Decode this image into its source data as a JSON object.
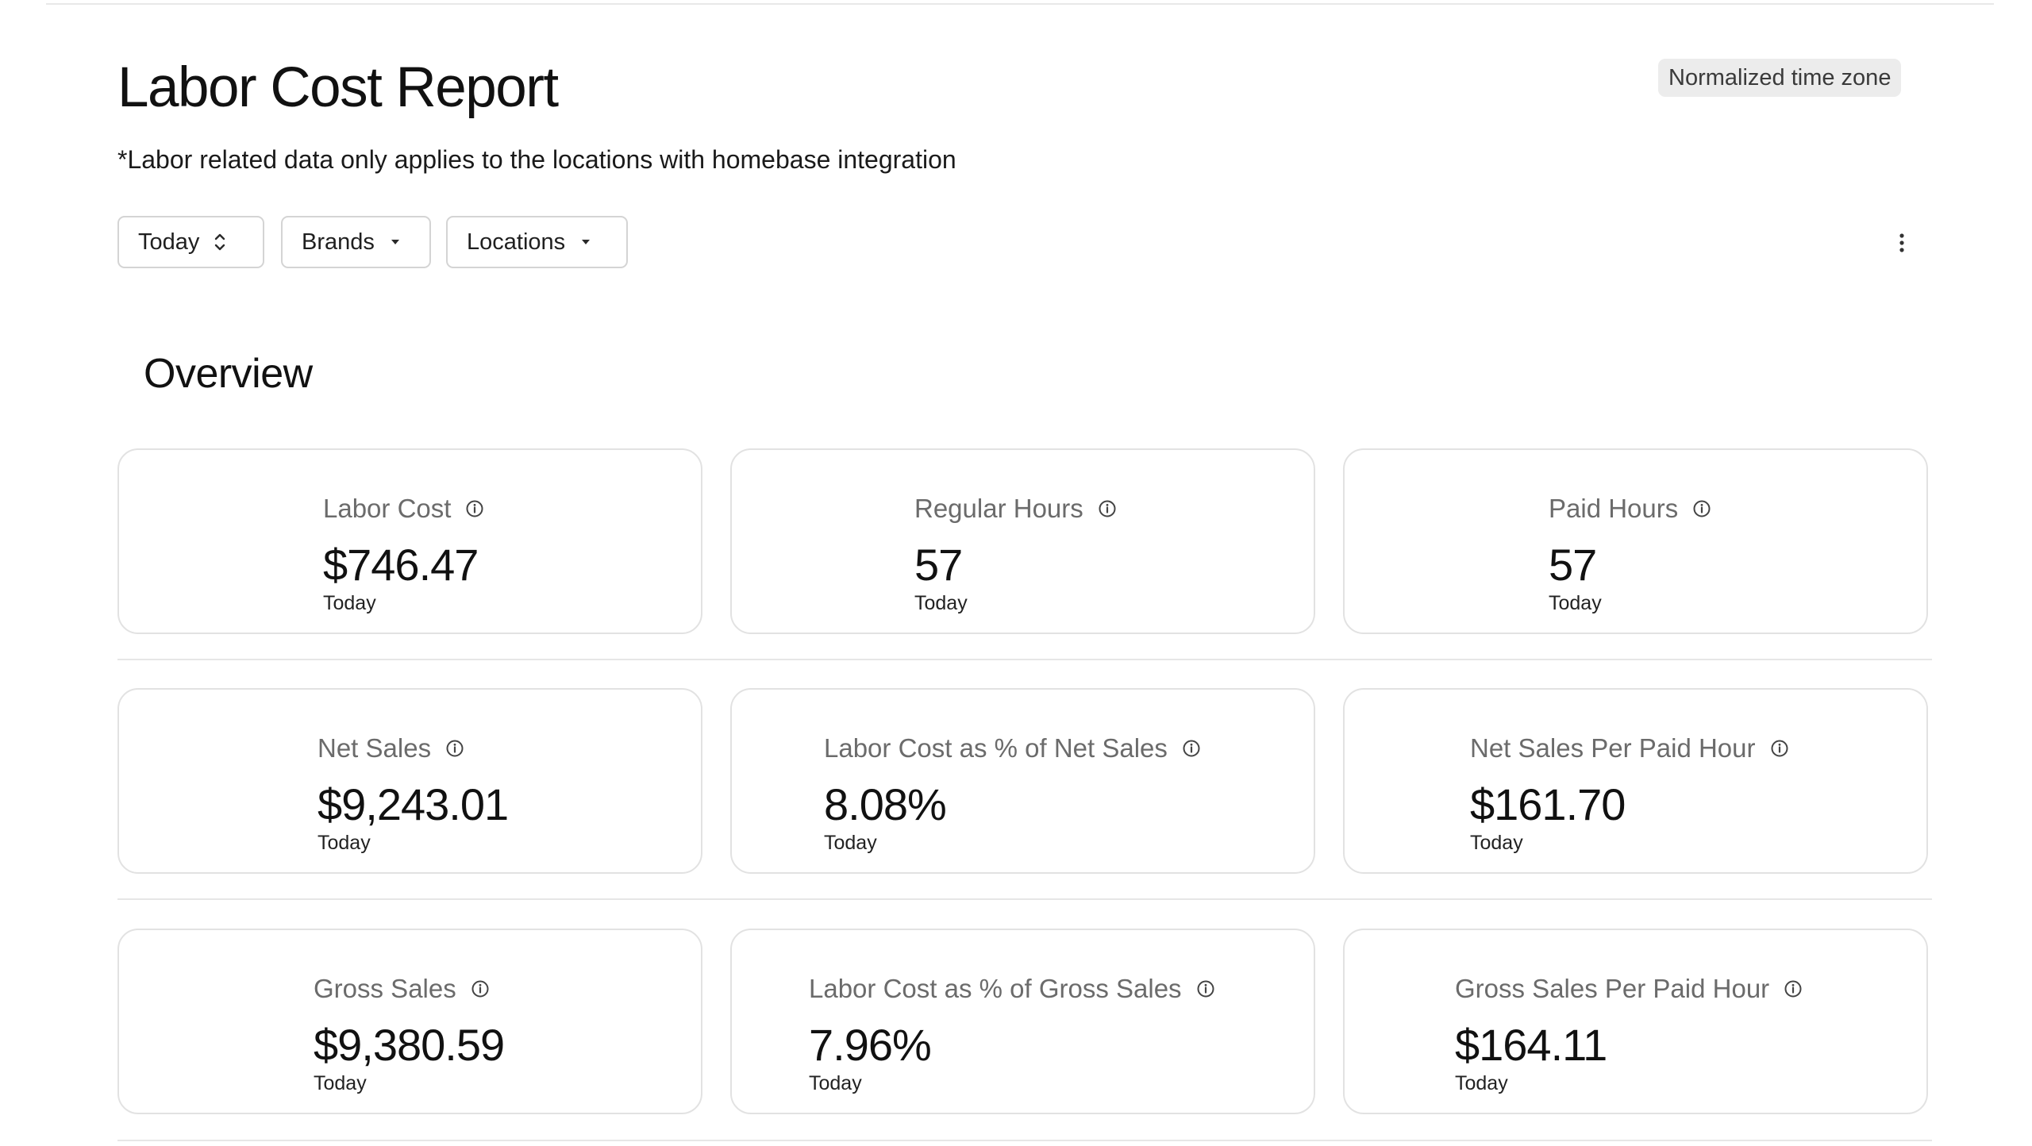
{
  "header": {
    "title": "Labor Cost Report",
    "timezone_badge": "Normalized time zone",
    "subtitle": "*Labor related data only applies to the locations with homebase integration"
  },
  "filters": {
    "period": {
      "label": "Today",
      "icon": "chevron-up-down-icon"
    },
    "brands": {
      "label": "Brands",
      "icon": "caret-down-icon"
    },
    "locations": {
      "label": "Locations",
      "icon": "caret-down-icon"
    },
    "more_icon": "more-vertical-icon"
  },
  "overview": {
    "title": "Overview",
    "cards": [
      {
        "label": "Labor Cost",
        "value": "$746.47",
        "period": "Today"
      },
      {
        "label": "Regular Hours",
        "value": "57",
        "period": "Today"
      },
      {
        "label": "Paid Hours",
        "value": "57",
        "period": "Today"
      },
      {
        "label": "Net Sales",
        "value": "$9,243.01",
        "period": "Today"
      },
      {
        "label": "Labor Cost as % of Net Sales",
        "value": "8.08%",
        "period": "Today"
      },
      {
        "label": "Net Sales Per Paid Hour",
        "value": "$161.70",
        "period": "Today"
      },
      {
        "label": "Gross Sales",
        "value": "$9,380.59",
        "period": "Today"
      },
      {
        "label": "Labor Cost as % of Gross Sales",
        "value": "7.96%",
        "period": "Today"
      },
      {
        "label": "Gross Sales Per Paid Hour",
        "value": "$164.11",
        "period": "Today"
      }
    ]
  }
}
